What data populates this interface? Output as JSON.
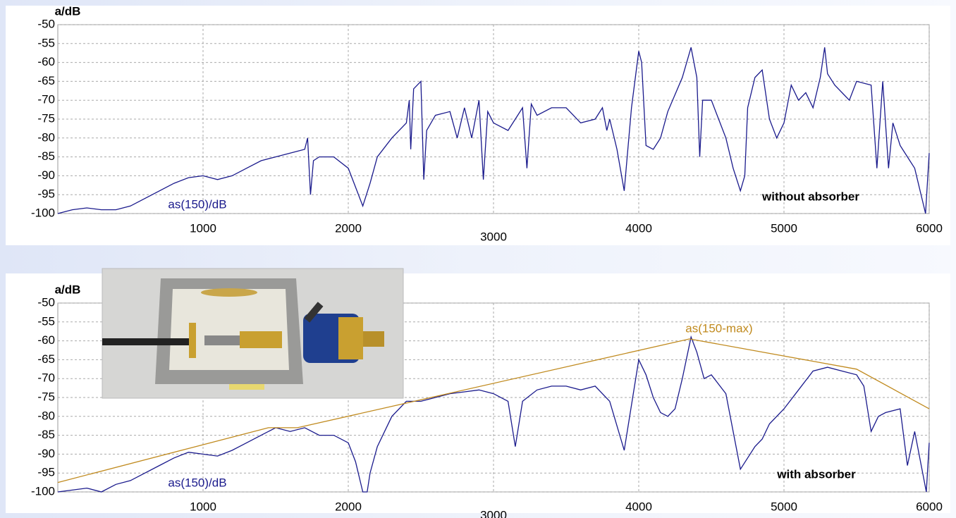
{
  "chart_data": [
    {
      "type": "line",
      "ylabel": "a/dB",
      "xlim": [
        0,
        6000
      ],
      "xticks": [
        1000,
        2000,
        3000,
        4000,
        5000,
        6000
      ],
      "ylim": [
        -100,
        -50
      ],
      "yticks": [
        -50,
        -55,
        -60,
        -65,
        -70,
        -75,
        -80,
        -85,
        -90,
        -95,
        -100
      ],
      "grid": true,
      "annotation": "without absorber",
      "series": [
        {
          "name": "as(150)/dB",
          "color": "#1a1a8c",
          "x": [
            0,
            100,
            200,
            300,
            400,
            500,
            600,
            700,
            800,
            900,
            1000,
            1100,
            1200,
            1300,
            1400,
            1500,
            1600,
            1700,
            1720,
            1740,
            1760,
            1800,
            1900,
            2000,
            2100,
            2150,
            2200,
            2300,
            2400,
            2420,
            2430,
            2450,
            2500,
            2520,
            2540,
            2600,
            2700,
            2750,
            2800,
            2850,
            2900,
            2930,
            2960,
            3000,
            3100,
            3200,
            3230,
            3260,
            3300,
            3400,
            3500,
            3550,
            3600,
            3700,
            3750,
            3780,
            3800,
            3850,
            3900,
            3950,
            4000,
            4020,
            4050,
            4100,
            4150,
            4200,
            4300,
            4360,
            4400,
            4420,
            4440,
            4500,
            4600,
            4650,
            4700,
            4730,
            4750,
            4800,
            4850,
            4900,
            4950,
            5000,
            5050,
            5100,
            5150,
            5200,
            5250,
            5280,
            5300,
            5350,
            5400,
            5450,
            5500,
            5600,
            5640,
            5680,
            5720,
            5750,
            5800,
            5850,
            5900,
            5950,
            5975,
            6000
          ],
          "values": [
            -100,
            -99,
            -98.5,
            -99,
            -99,
            -98,
            -96,
            -94,
            -92,
            -90.5,
            -90,
            -91,
            -90,
            -88,
            -86,
            -85,
            -84,
            -83,
            -80,
            -95,
            -86,
            -85,
            -85,
            -88,
            -98,
            -92,
            -85,
            -80,
            -76,
            -70,
            -83,
            -67,
            -65,
            -91,
            -78,
            -74,
            -73,
            -80,
            -72,
            -80,
            -70,
            -91,
            -73,
            -76,
            -78,
            -72,
            -88,
            -71,
            -74,
            -72,
            -72,
            -74,
            -76,
            -75,
            -72,
            -78,
            -75,
            -83,
            -94,
            -72,
            -57,
            -60,
            -82,
            -83,
            -80,
            -73,
            -64,
            -56,
            -64,
            -85,
            -70,
            -70,
            -80,
            -88,
            -94,
            -90,
            -72,
            -64,
            -62,
            -75,
            -80,
            -76,
            -66,
            -70,
            -68,
            -72,
            -64,
            -56,
            -63,
            -66,
            -68,
            -70,
            -65,
            -66,
            -88,
            -65,
            -88,
            -76,
            -82,
            -85,
            -88,
            -96,
            -100,
            -84
          ]
        }
      ]
    },
    {
      "type": "line",
      "ylabel": "a/dB",
      "xlim": [
        0,
        6000
      ],
      "xticks": [
        1000,
        2000,
        3000,
        4000,
        5000,
        6000
      ],
      "ylim": [
        -100,
        -50
      ],
      "yticks": [
        -50,
        -55,
        -60,
        -65,
        -70,
        -75,
        -80,
        -85,
        -90,
        -95,
        -100
      ],
      "grid": true,
      "annotation": "with absorber",
      "series": [
        {
          "name": "as(150)/dB",
          "color": "#1a1a8c",
          "x": [
            0,
            200,
            300,
            400,
            500,
            600,
            700,
            800,
            900,
            1000,
            1100,
            1200,
            1300,
            1400,
            1500,
            1600,
            1700,
            1800,
            1900,
            2000,
            2050,
            2100,
            2130,
            2150,
            2200,
            2300,
            2400,
            2500,
            2600,
            2700,
            2800,
            2900,
            3000,
            3100,
            3150,
            3200,
            3300,
            3400,
            3500,
            3600,
            3700,
            3800,
            3900,
            4000,
            4050,
            4100,
            4150,
            4200,
            4250,
            4300,
            4360,
            4400,
            4450,
            4500,
            4600,
            4700,
            4800,
            4850,
            4900,
            5000,
            5100,
            5200,
            5300,
            5400,
            5500,
            5550,
            5600,
            5650,
            5700,
            5800,
            5850,
            5900,
            5950,
            5980,
            6000
          ],
          "values": [
            -100,
            -99,
            -100,
            -98,
            -97,
            -95,
            -93,
            -91,
            -89.5,
            -90,
            -90.5,
            -89,
            -87,
            -85,
            -83,
            -84,
            -83,
            -85,
            -85,
            -87,
            -92,
            -100,
            -100,
            -95,
            -88,
            -80,
            -76,
            -76,
            -75,
            -74,
            -73.5,
            -73,
            -74,
            -76,
            -88,
            -76,
            -73,
            -72,
            -72,
            -73,
            -72,
            -76,
            -89,
            -65,
            -69,
            -75,
            -79,
            -80,
            -78,
            -70,
            -59,
            -63,
            -70,
            -69,
            -74,
            -94,
            -88,
            -86,
            -82,
            -78,
            -73,
            -68,
            -67,
            -68,
            -69,
            -72,
            -84,
            -80,
            -79,
            -78,
            -93,
            -84,
            -94,
            -100,
            -87
          ]
        },
        {
          "name": "as(150-max)",
          "color": "#c08a1e",
          "x": [
            0,
            1450,
            1650,
            4350,
            5500,
            6000
          ],
          "values": [
            -97.5,
            -83,
            -83,
            -59.5,
            -67.5,
            -78
          ]
        }
      ]
    }
  ]
}
